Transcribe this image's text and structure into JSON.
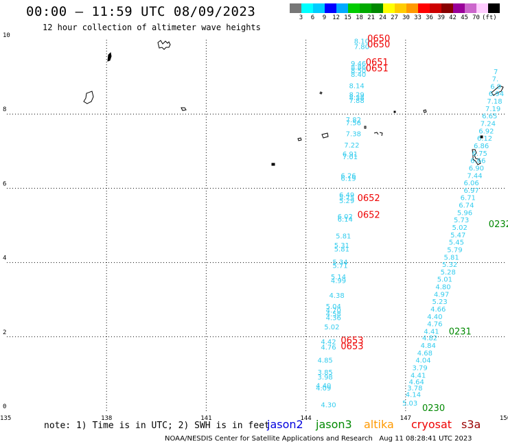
{
  "header": {
    "title": "00:00 – 11:59 UTC 08/09/2023",
    "subtitle": "12 hour collection of altimeter wave heights"
  },
  "legend": {
    "colors": [
      "#777777",
      "#00ffff",
      "#00ccff",
      "#0000ff",
      "#00aaff",
      "#00cc00",
      "#00aa00",
      "#008800",
      "#ffff00",
      "#ffcc00",
      "#ff9900",
      "#ff0000",
      "#cc0000",
      "#880000",
      "#990099",
      "#cc66cc",
      "#ffccff",
      "#000000"
    ],
    "labels": [
      "3",
      "6",
      "9",
      "12",
      "15",
      "18",
      "21",
      "24",
      "27",
      "30",
      "33",
      "36",
      "39",
      "42",
      "45",
      "70",
      "(ft)"
    ]
  },
  "map": {
    "lon_range": [
      135,
      150
    ],
    "lat_range": [
      0,
      10
    ],
    "lon_ticks": [
      "135",
      "138",
      "141",
      "144",
      "147",
      "150"
    ],
    "lat_ticks": [
      "0",
      "2",
      "4",
      "6",
      "8",
      "10"
    ]
  },
  "wave_heights": [
    {
      "lon": 144.45,
      "lat": 0.1,
      "v": "4.30"
    },
    {
      "lon": 144.3,
      "lat": 0.55,
      "v": "4.09"
    },
    {
      "lon": 144.3,
      "lat": 0.62,
      "v": "4.40"
    },
    {
      "lon": 144.35,
      "lat": 0.85,
      "v": "3.98"
    },
    {
      "lon": 144.35,
      "lat": 0.98,
      "v": "3.85"
    },
    {
      "lon": 144.35,
      "lat": 1.3,
      "v": "4.85"
    },
    {
      "lon": 144.45,
      "lat": 1.65,
      "v": "4.76"
    },
    {
      "lon": 144.45,
      "lat": 1.8,
      "v": "4.42"
    },
    {
      "lon": 144.55,
      "lat": 2.2,
      "v": "5.02"
    },
    {
      "lon": 144.6,
      "lat": 2.45,
      "v": "4.36"
    },
    {
      "lon": 144.6,
      "lat": 2.55,
      "v": "4.58"
    },
    {
      "lon": 144.6,
      "lat": 2.65,
      "v": "4.70"
    },
    {
      "lon": 144.6,
      "lat": 2.75,
      "v": "5.04"
    },
    {
      "lon": 144.7,
      "lat": 3.05,
      "v": "4.38"
    },
    {
      "lon": 144.75,
      "lat": 3.45,
      "v": "4.99"
    },
    {
      "lon": 144.75,
      "lat": 3.55,
      "v": "5.14"
    },
    {
      "lon": 144.8,
      "lat": 3.85,
      "v": "5.71"
    },
    {
      "lon": 144.8,
      "lat": 3.95,
      "v": "5.34"
    },
    {
      "lon": 144.85,
      "lat": 4.3,
      "v": "5.81"
    },
    {
      "lon": 144.85,
      "lat": 4.4,
      "v": "5.31"
    },
    {
      "lon": 144.9,
      "lat": 4.65,
      "v": "5.81"
    },
    {
      "lon": 144.95,
      "lat": 5.1,
      "v": "6.14"
    },
    {
      "lon": 144.95,
      "lat": 5.18,
      "v": "6.02"
    },
    {
      "lon": 145.0,
      "lat": 5.6,
      "v": "5.29"
    },
    {
      "lon": 145.0,
      "lat": 5.68,
      "v": "5.75"
    },
    {
      "lon": 145.0,
      "lat": 5.76,
      "v": "6.49"
    },
    {
      "lon": 145.05,
      "lat": 6.2,
      "v": "6.19"
    },
    {
      "lon": 145.05,
      "lat": 6.28,
      "v": "6.26"
    },
    {
      "lon": 145.1,
      "lat": 6.78,
      "v": "7.01"
    },
    {
      "lon": 145.1,
      "lat": 6.86,
      "v": "6.91"
    },
    {
      "lon": 145.15,
      "lat": 7.1,
      "v": "7.22"
    },
    {
      "lon": 145.2,
      "lat": 7.4,
      "v": "7.38"
    },
    {
      "lon": 145.2,
      "lat": 7.7,
      "v": "7.56"
    },
    {
      "lon": 145.2,
      "lat": 7.78,
      "v": "7.82"
    },
    {
      "lon": 145.3,
      "lat": 8.3,
      "v": "7.88"
    },
    {
      "lon": 145.3,
      "lat": 8.38,
      "v": "8.38"
    },
    {
      "lon": 145.3,
      "lat": 8.46,
      "v": "8.29"
    },
    {
      "lon": 145.3,
      "lat": 8.7,
      "v": "8.14"
    },
    {
      "lon": 145.35,
      "lat": 9.0,
      "v": "8.40"
    },
    {
      "lon": 145.35,
      "lat": 9.1,
      "v": "8.50"
    },
    {
      "lon": 145.35,
      "lat": 9.2,
      "v": "8.86"
    },
    {
      "lon": 145.35,
      "lat": 9.3,
      "v": "9.46"
    },
    {
      "lon": 145.45,
      "lat": 9.75,
      "v": "7.80"
    },
    {
      "lon": 145.45,
      "lat": 9.9,
      "v": "8.10"
    },
    {
      "lon": 146.9,
      "lat": 0.15,
      "v": "5.03"
    },
    {
      "lon": 147.0,
      "lat": 0.38,
      "v": "4.14"
    },
    {
      "lon": 147.05,
      "lat": 0.55,
      "v": "3.78"
    },
    {
      "lon": 147.1,
      "lat": 0.72,
      "v": "4.64"
    },
    {
      "lon": 147.15,
      "lat": 0.9,
      "v": "4.41"
    },
    {
      "lon": 147.2,
      "lat": 1.1,
      "v": "3.79"
    },
    {
      "lon": 147.3,
      "lat": 1.3,
      "v": "4.04"
    },
    {
      "lon": 147.35,
      "lat": 1.5,
      "v": "4.68"
    },
    {
      "lon": 147.45,
      "lat": 1.7,
      "v": "4.84"
    },
    {
      "lon": 147.5,
      "lat": 1.9,
      "v": "4.82"
    },
    {
      "lon": 147.55,
      "lat": 2.08,
      "v": "4.41"
    },
    {
      "lon": 147.65,
      "lat": 2.28,
      "v": "4.76"
    },
    {
      "lon": 147.65,
      "lat": 2.48,
      "v": "4.40"
    },
    {
      "lon": 147.75,
      "lat": 2.68,
      "v": "4.66"
    },
    {
      "lon": 147.8,
      "lat": 2.88,
      "v": "5.23"
    },
    {
      "lon": 147.85,
      "lat": 3.08,
      "v": "4.97"
    },
    {
      "lon": 147.9,
      "lat": 3.28,
      "v": "4.80"
    },
    {
      "lon": 147.95,
      "lat": 3.48,
      "v": "5.01"
    },
    {
      "lon": 148.05,
      "lat": 3.68,
      "v": "5.28"
    },
    {
      "lon": 148.1,
      "lat": 3.88,
      "v": "5.32"
    },
    {
      "lon": 148.15,
      "lat": 4.08,
      "v": "5.81"
    },
    {
      "lon": 148.25,
      "lat": 4.28,
      "v": "5.79"
    },
    {
      "lon": 148.3,
      "lat": 4.48,
      "v": "5.45"
    },
    {
      "lon": 148.35,
      "lat": 4.68,
      "v": "5.47"
    },
    {
      "lon": 148.4,
      "lat": 4.88,
      "v": "5.02"
    },
    {
      "lon": 148.45,
      "lat": 5.08,
      "v": "5.73"
    },
    {
      "lon": 148.55,
      "lat": 5.28,
      "v": "5.96"
    },
    {
      "lon": 148.6,
      "lat": 5.48,
      "v": "6.74"
    },
    {
      "lon": 148.65,
      "lat": 5.68,
      "v": "6.71"
    },
    {
      "lon": 148.75,
      "lat": 5.88,
      "v": "6.97"
    },
    {
      "lon": 148.75,
      "lat": 6.08,
      "v": "6.06"
    },
    {
      "lon": 148.85,
      "lat": 6.28,
      "v": "7.44"
    },
    {
      "lon": 148.9,
      "lat": 6.48,
      "v": "6.90"
    },
    {
      "lon": 148.95,
      "lat": 6.68,
      "v": "6.66"
    },
    {
      "lon": 149.0,
      "lat": 6.88,
      "v": "6.75"
    },
    {
      "lon": 149.05,
      "lat": 7.08,
      "v": "6.86"
    },
    {
      "lon": 149.15,
      "lat": 7.28,
      "v": "6.12"
    },
    {
      "lon": 149.2,
      "lat": 7.48,
      "v": "6.92"
    },
    {
      "lon": 149.25,
      "lat": 7.68,
      "v": "7.24"
    },
    {
      "lon": 149.3,
      "lat": 7.88,
      "v": "6.65"
    },
    {
      "lon": 149.4,
      "lat": 8.08,
      "v": "7.19"
    },
    {
      "lon": 149.45,
      "lat": 8.28,
      "v": "7.18"
    },
    {
      "lon": 149.5,
      "lat": 8.48,
      "v": "6.94"
    },
    {
      "lon": 149.55,
      "lat": 8.68,
      "v": "6.9"
    },
    {
      "lon": 149.6,
      "lat": 8.88,
      "v": "7."
    },
    {
      "lon": 149.65,
      "lat": 9.08,
      "v": "7"
    }
  ],
  "pass_times": [
    {
      "lon": 145.85,
      "lat": 9.8,
      "v": "0650",
      "sat": "cryosat"
    },
    {
      "lon": 145.85,
      "lat": 9.95,
      "v": "0650",
      "sat": "cryosat"
    },
    {
      "lon": 145.8,
      "lat": 9.15,
      "v": "0651",
      "sat": "cryosat"
    },
    {
      "lon": 145.8,
      "lat": 9.32,
      "v": "0651",
      "sat": "cryosat"
    },
    {
      "lon": 145.55,
      "lat": 5.2,
      "v": "0652",
      "sat": "cryosat"
    },
    {
      "lon": 145.55,
      "lat": 5.66,
      "v": "0652",
      "sat": "cryosat"
    },
    {
      "lon": 145.05,
      "lat": 1.66,
      "v": "0653",
      "sat": "cryosat"
    },
    {
      "lon": 145.05,
      "lat": 1.82,
      "v": "0653",
      "sat": "cryosat"
    },
    {
      "lon": 149.5,
      "lat": 4.95,
      "v": "0232",
      "sat": "jason3"
    },
    {
      "lon": 148.3,
      "lat": 2.06,
      "v": "0231",
      "sat": "jason3"
    },
    {
      "lon": 147.5,
      "lat": 0.0,
      "v": "0230",
      "sat": "jason3"
    }
  ],
  "colors": {
    "jason2": "#0000dd",
    "jason3": "#008800",
    "altika": "#ff9900",
    "cryosat": "#ee0000",
    "s3a": "#990000",
    "wave": "#33ccee"
  },
  "note": "note: 1) Time is in UTC; 2) SWH is in feet",
  "satellites": {
    "jason2": "jason2",
    "jason3": "jason3",
    "altika": "altika",
    "cryosat": "cryosat",
    "s3a": "s3a"
  },
  "footer": "NOAA/NESDIS Center for Satellite Applications and Research   Aug 11 08:28:41 UTC 2023"
}
